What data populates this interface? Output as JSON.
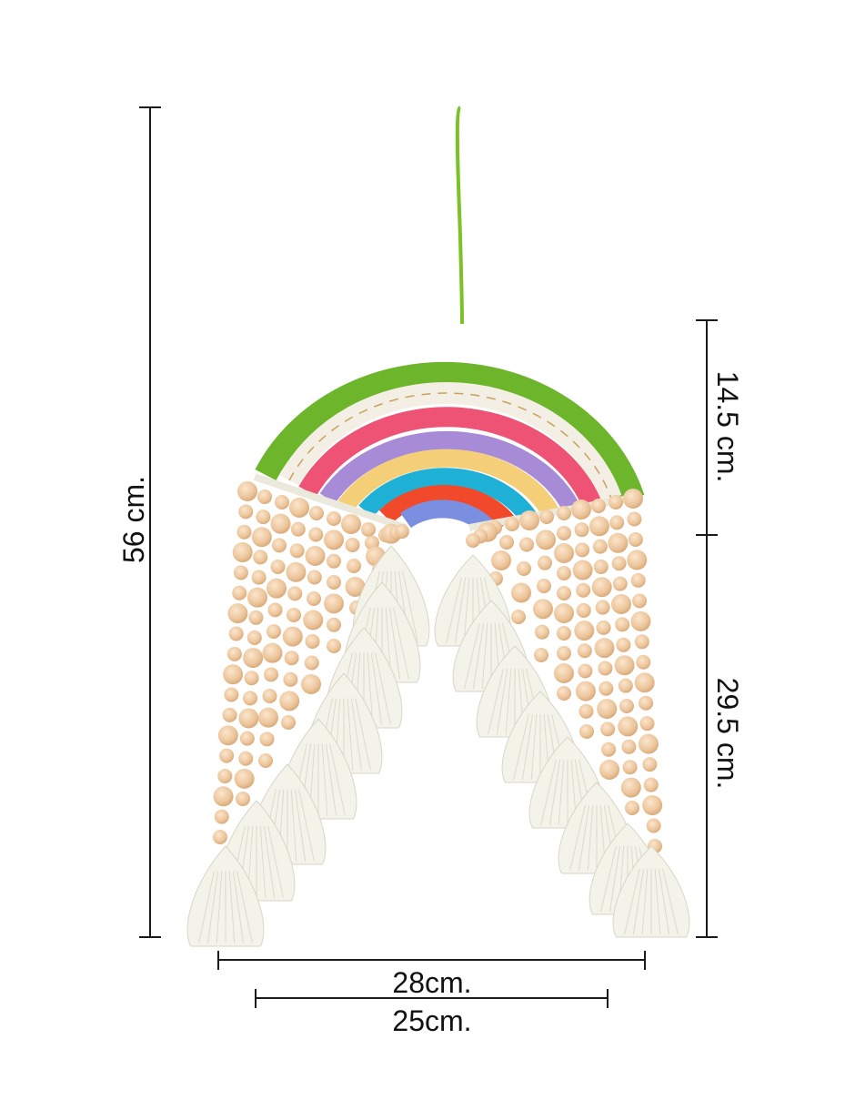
{
  "product": {
    "description_colors": {
      "hanger": "#7cc227",
      "arc_green": "#6db52b",
      "arc_cream": "#f3efe4",
      "arc_pink": "#ee5275",
      "arc_lilac": "#a78bd6",
      "arc_yellow": "#f4cf78",
      "arc_cyan": "#1fb0d6",
      "arc_red": "#f04a2a",
      "arc_blue": "#7a8fe0",
      "wood_bead": "#ecc59b",
      "tassel": "#f4f3ea"
    }
  },
  "dimensions": {
    "total_height": "56  cm.",
    "rainbow_height": "14.5 cm.",
    "fringe_height": "29.5 cm.",
    "outer_width": "28cm.",
    "inner_width": "25cm."
  }
}
